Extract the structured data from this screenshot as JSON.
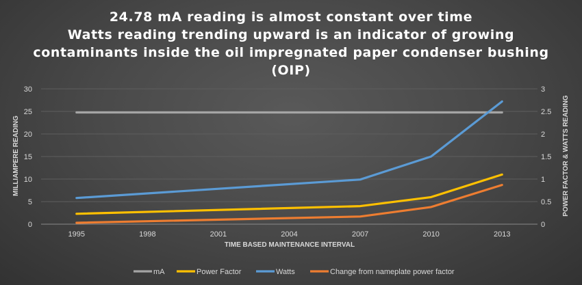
{
  "chart_data": {
    "type": "line",
    "title_lines": [
      "24.78 mA reading is almost constant over time",
      "Watts reading trending upward is an indicator of growing",
      "contaminants inside the oil impregnated paper condenser bushing",
      "(OIP)"
    ],
    "xlabel": "TIME BASED MAINTENANCE INTERVAL",
    "ylabel_left": "MILLIAMPERE READING",
    "ylabel_right": "POWER FACTOR & WATTS READING",
    "categories": [
      "1995",
      "1998",
      "2001",
      "2004",
      "2007",
      "2010",
      "2013"
    ],
    "ylim_left": [
      0,
      30
    ],
    "yticks_left": [
      "0",
      "5",
      "10",
      "15",
      "20",
      "25",
      "30"
    ],
    "ylim_right": [
      0,
      3
    ],
    "yticks_right": [
      "0",
      "0.5",
      "1",
      "1.5",
      "2",
      "2.5",
      "3"
    ],
    "grid": true,
    "legend_position": "bottom",
    "series": [
      {
        "name": "mA",
        "axis": "left",
        "color": "#a5a5a5",
        "x": [
          "1995",
          "2013"
        ],
        "values": [
          24.78,
          24.78
        ]
      },
      {
        "name": "Power Factor",
        "axis": "right",
        "color": "#ffc000",
        "x": [
          "1995",
          "2007",
          "2010",
          "2013"
        ],
        "values": [
          0.23,
          0.4,
          0.6,
          1.1
        ]
      },
      {
        "name": "Watts",
        "axis": "right",
        "color": "#5b9bd5",
        "x": [
          "1995",
          "2007",
          "2010",
          "2013"
        ],
        "values": [
          0.58,
          0.99,
          1.5,
          2.72
        ]
      },
      {
        "name": "Change from nameplate power factor",
        "axis": "right",
        "color": "#ed7d31",
        "x": [
          "1995",
          "2007",
          "2010",
          "2013"
        ],
        "values": [
          0.03,
          0.17,
          0.38,
          0.87
        ]
      }
    ]
  }
}
